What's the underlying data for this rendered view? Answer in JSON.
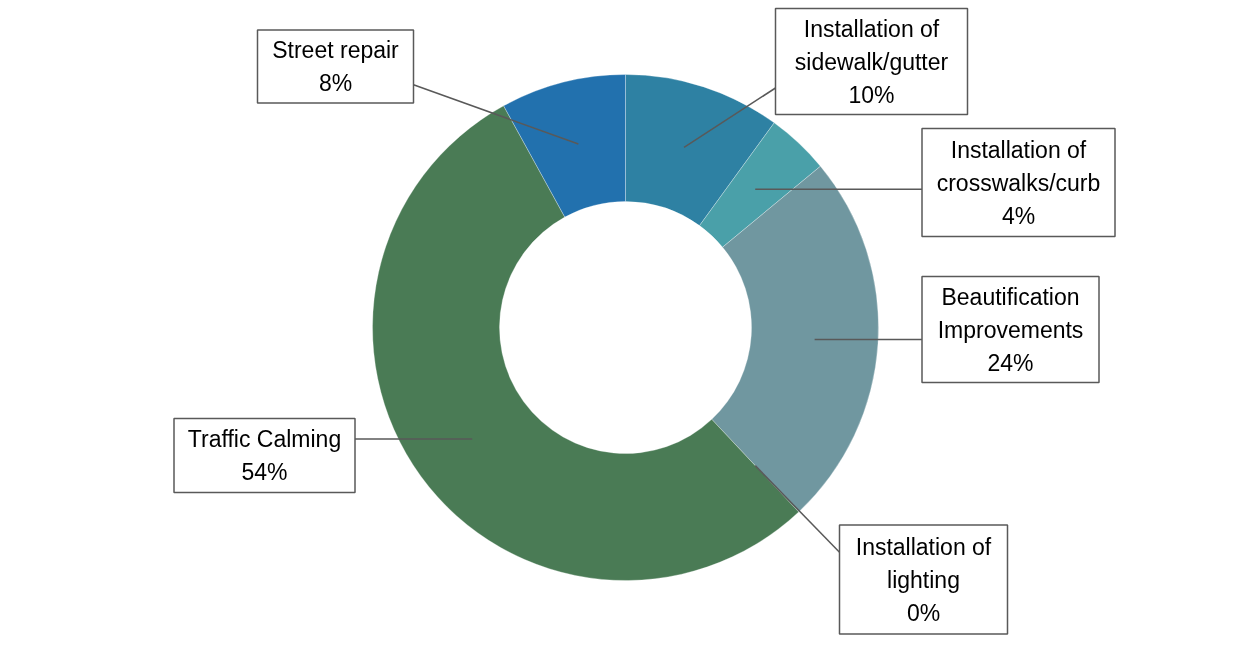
{
  "chart_data": {
    "type": "donut",
    "categories": [
      "Installation of sidewalk/gutter",
      "Installation of crosswalks/curb",
      "Beautification Improvements",
      "Installation of lighting",
      "Traffic Calming",
      "Street repair"
    ],
    "values": [
      10,
      4,
      24,
      0,
      54,
      8
    ],
    "value_labels": [
      "10%",
      "4%",
      "24%",
      "0%",
      "54%",
      "8%"
    ],
    "colors": [
      "#2e81a3",
      "#4aa0a9",
      "#7097a0",
      "#5b8c6e",
      "#4a7b55",
      "#2271ae"
    ]
  }
}
